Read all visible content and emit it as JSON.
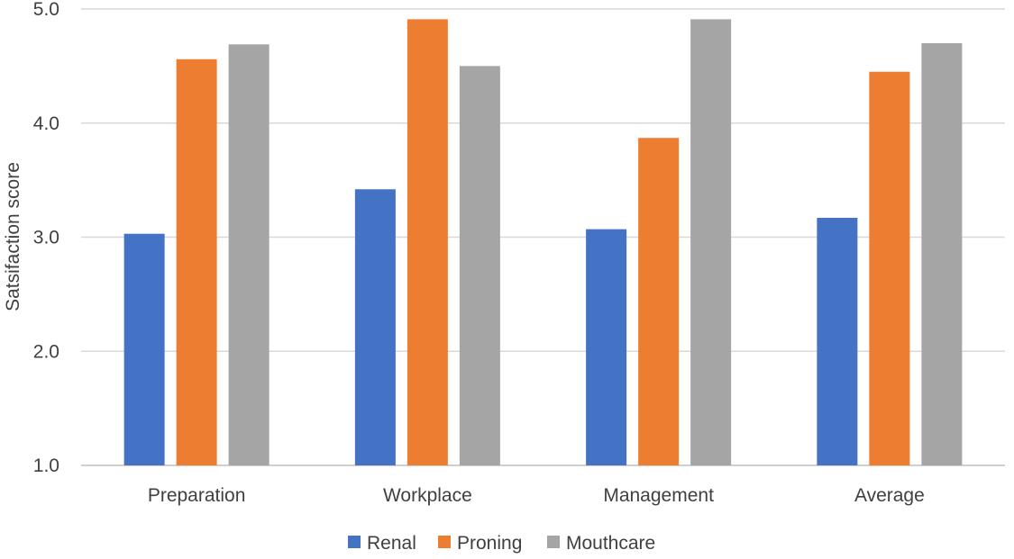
{
  "chart_data": {
    "type": "bar",
    "title": "",
    "xlabel": "",
    "ylabel": "Satsifaction score",
    "categories": [
      "Preparation",
      "Workplace",
      "Management",
      "Average"
    ],
    "series": [
      {
        "name": "Renal",
        "color": "#4472c4",
        "values": [
          3.03,
          3.42,
          3.07,
          3.17
        ]
      },
      {
        "name": "Proning",
        "color": "#ed7d31",
        "values": [
          4.56,
          4.91,
          3.87,
          4.45
        ]
      },
      {
        "name": "Mouthcare",
        "color": "#a5a5a5",
        "values": [
          4.69,
          4.5,
          4.91,
          4.7
        ]
      }
    ],
    "ylim": [
      1.0,
      5.0
    ],
    "yticks": [
      "1.0",
      "2.0",
      "3.0",
      "4.0",
      "5.0"
    ],
    "grid": true,
    "legend_position": "bottom"
  }
}
